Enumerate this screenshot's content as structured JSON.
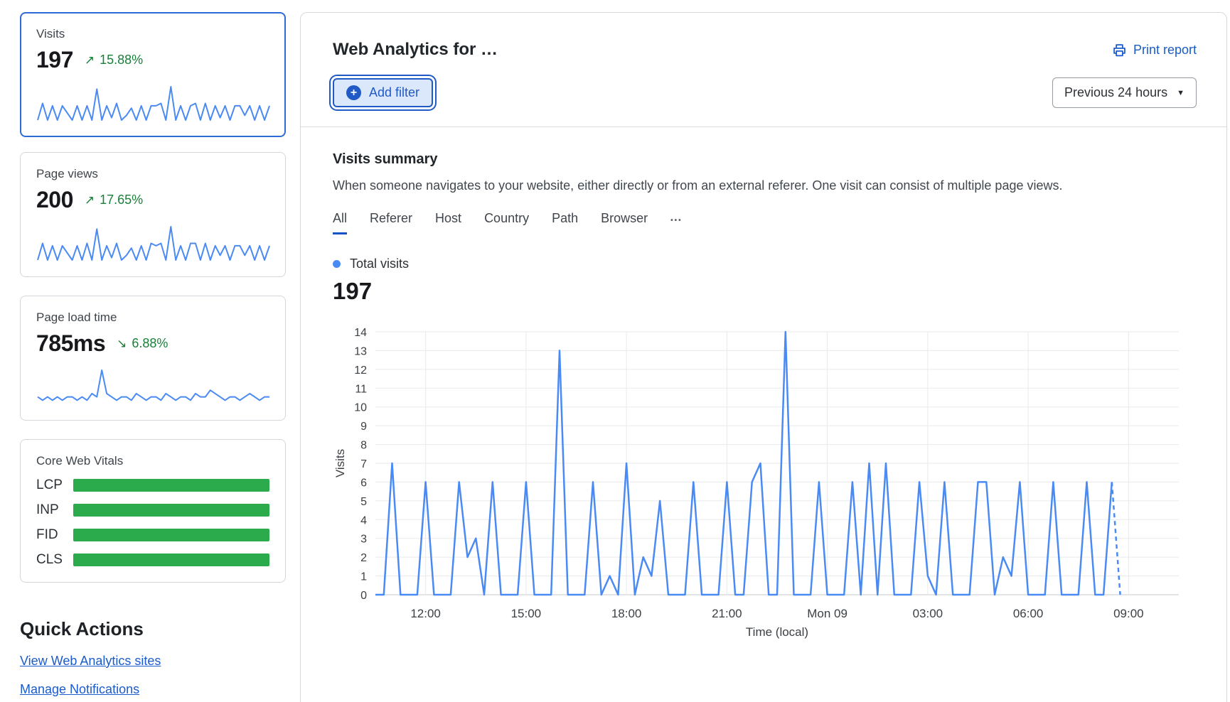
{
  "colors": {
    "accent_blue": "#1f5ac6",
    "link_blue": "#1b5bcc",
    "chart_blue": "#4a8af4",
    "delta_green": "#188038",
    "vitals_green": "#2bab4c",
    "selected_card_border": "#2f6bd8",
    "grid": "#e9eaec"
  },
  "icons": {
    "plus": "+",
    "caret_down": "▼",
    "trend_up": "↗",
    "trend_down": "↘"
  },
  "sidebar": {
    "cards": [
      {
        "label": "Visits",
        "value": "197",
        "delta": "15.88%",
        "trend": "up",
        "selected": true,
        "spark_max": 14,
        "spark": [
          0,
          7,
          0,
          6,
          0,
          6,
          3,
          0,
          6,
          0,
          6,
          0,
          13,
          0,
          6,
          1,
          7,
          0,
          2,
          5,
          0,
          6,
          0,
          6,
          6,
          7,
          0,
          14,
          0,
          6,
          0,
          6,
          7,
          0,
          7,
          0,
          6,
          1,
          6,
          0,
          6,
          6,
          2,
          6,
          0,
          6,
          0,
          6
        ]
      },
      {
        "label": "Page views",
        "value": "200",
        "delta": "17.65%",
        "trend": "up",
        "selected": false,
        "spark_max": 14,
        "spark": [
          0,
          7,
          0,
          6,
          0,
          6,
          3,
          0,
          6,
          0,
          7,
          0,
          13,
          0,
          6,
          1,
          7,
          0,
          2,
          5,
          0,
          6,
          0,
          7,
          6,
          7,
          0,
          14,
          0,
          6,
          0,
          7,
          7,
          0,
          7,
          0,
          6,
          2,
          6,
          0,
          6,
          6,
          2,
          6,
          0,
          6,
          0,
          6
        ]
      },
      {
        "label": "Page load time",
        "value": "785ms",
        "delta": "6.88%",
        "trend": "down",
        "selected": false,
        "spark_max": 10,
        "spark": [
          2,
          1,
          2,
          1,
          2,
          1,
          2,
          2,
          1,
          2,
          1,
          3,
          2,
          10,
          3,
          2,
          1,
          2,
          2,
          1,
          3,
          2,
          1,
          2,
          2,
          1,
          3,
          2,
          1,
          2,
          2,
          1,
          3,
          2,
          2,
          4,
          3,
          2,
          1,
          2,
          2,
          1,
          2,
          3,
          2,
          1,
          2,
          2
        ]
      }
    ],
    "core_web_vitals": {
      "title": "Core Web Vitals",
      "metrics": [
        {
          "label": "LCP",
          "score": 1
        },
        {
          "label": "INP",
          "score": 1
        },
        {
          "label": "FID",
          "score": 1
        },
        {
          "label": "CLS",
          "score": 1
        }
      ]
    },
    "quick_actions": {
      "title": "Quick Actions",
      "links": [
        {
          "label": "View Web Analytics sites"
        },
        {
          "label": "Manage Notifications"
        }
      ]
    }
  },
  "header": {
    "title": "Web Analytics for …",
    "print_report": "Print report",
    "add_filter": "Add filter",
    "time_range": "Previous 24 hours"
  },
  "summary": {
    "title": "Visits summary",
    "description": "When someone navigates to your website, either directly or from an external referer. One visit can consist of multiple page views.",
    "tabs": [
      "All",
      "Referer",
      "Host",
      "Country",
      "Path",
      "Browser",
      "•••"
    ],
    "active_tab": "All",
    "legend_label": "Total visits",
    "total": "197"
  },
  "chart_data": {
    "type": "line",
    "series_name": "Total visits",
    "ylabel": "Visits",
    "xlabel": "Time (local)",
    "ylim": [
      0,
      14
    ],
    "y_ticks": [
      0,
      1,
      2,
      3,
      4,
      5,
      6,
      7,
      8,
      9,
      10,
      11,
      12,
      13,
      14
    ],
    "x_tick_labels": [
      "12:00",
      "15:00",
      "18:00",
      "21:00",
      "Mon 09",
      "03:00",
      "06:00",
      "09:00"
    ],
    "x_tick_positions": [
      6,
      18,
      30,
      42,
      54,
      66,
      78,
      90
    ],
    "x_domain": [
      0,
      96
    ],
    "points_per_hour": 4,
    "last_segment_dashed": true,
    "values": [
      0,
      0,
      7,
      0,
      0,
      0,
      6,
      0,
      0,
      0,
      6,
      2,
      3,
      0,
      6,
      0,
      0,
      0,
      6,
      0,
      0,
      0,
      13,
      0,
      0,
      0,
      6,
      0,
      1,
      0,
      7,
      0,
      2,
      1,
      5,
      0,
      0,
      0,
      6,
      0,
      0,
      0,
      6,
      0,
      0,
      6,
      7,
      0,
      0,
      14,
      0,
      0,
      0,
      6,
      0,
      0,
      0,
      6,
      0,
      7,
      0,
      7,
      0,
      0,
      0,
      6,
      1,
      0,
      6,
      0,
      0,
      0,
      6,
      6,
      0,
      2,
      1,
      6,
      0,
      0,
      0,
      6,
      0,
      0,
      0,
      6,
      0,
      0,
      6,
      0
    ]
  }
}
